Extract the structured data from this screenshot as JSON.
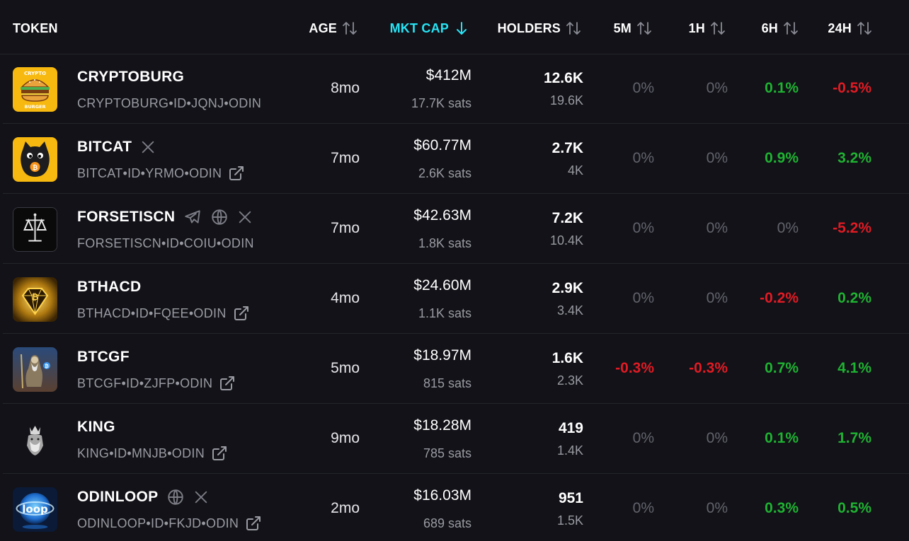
{
  "header": {
    "token": "TOKEN",
    "age": "AGE",
    "mkt_cap": "MKT CAP",
    "holders": "HOLDERS",
    "m5": "5M",
    "h1": "1H",
    "h6": "6H",
    "h24": "24H"
  },
  "colors": {
    "background": "#121218",
    "accent": "#27e4f5",
    "positive": "#1fb232",
    "negative": "#e01b24",
    "neutral": "#63636d"
  },
  "rows": [
    {
      "name": "CRYPTOBURG",
      "ident": "CRYPTOBURG•ID•JQNJ•ODIN",
      "logo_text_top": "CRYPTO",
      "logo_text_bottom": "BURGER",
      "socials": [],
      "age": "8mo",
      "mcap": "$412M",
      "sats": "17.7K sats",
      "holders": "12.6K",
      "holders_sub": "19.6K",
      "m5": "0%",
      "h1": "0%",
      "h6": "0.1%",
      "h24": "-0.5%",
      "trend": {
        "m5": "neutral",
        "h1": "neutral",
        "h6": "pos",
        "h24": "neg"
      }
    },
    {
      "name": "BITCAT",
      "ident": "BITCAT•ID•YRMO•ODIN",
      "socials": [
        "x-icon"
      ],
      "age": "7mo",
      "mcap": "$60.77M",
      "sats": "2.6K sats",
      "holders": "2.7K",
      "holders_sub": "4K",
      "m5": "0%",
      "h1": "0%",
      "h6": "0.9%",
      "h24": "3.2%",
      "trend": {
        "m5": "neutral",
        "h1": "neutral",
        "h6": "pos",
        "h24": "pos"
      }
    },
    {
      "name": "FORSETISCN",
      "ident": "FORSETISCN•ID•COIU•ODIN",
      "socials": [
        "telegram-icon",
        "globe-icon",
        "x-icon"
      ],
      "age": "7mo",
      "mcap": "$42.63M",
      "sats": "1.8K sats",
      "holders": "7.2K",
      "holders_sub": "10.4K",
      "m5": "0%",
      "h1": "0%",
      "h6": "0%",
      "h24": "-5.2%",
      "trend": {
        "m5": "neutral",
        "h1": "neutral",
        "h6": "neutral",
        "h24": "neg"
      }
    },
    {
      "name": "BTHACD",
      "ident": "BTHACD•ID•FQEE•ODIN",
      "socials": [],
      "age": "4mo",
      "mcap": "$24.60M",
      "sats": "1.1K sats",
      "holders": "2.9K",
      "holders_sub": "3.4K",
      "m5": "0%",
      "h1": "0%",
      "h6": "-0.2%",
      "h24": "0.2%",
      "trend": {
        "m5": "neutral",
        "h1": "neutral",
        "h6": "neg",
        "h24": "pos"
      }
    },
    {
      "name": "BTCGF",
      "ident": "BTCGF•ID•ZJFP•ODIN",
      "socials": [],
      "age": "5mo",
      "mcap": "$18.97M",
      "sats": "815 sats",
      "holders": "1.6K",
      "holders_sub": "2.3K",
      "m5": "-0.3%",
      "h1": "-0.3%",
      "h6": "0.7%",
      "h24": "4.1%",
      "trend": {
        "m5": "neg",
        "h1": "neg",
        "h6": "pos",
        "h24": "pos"
      }
    },
    {
      "name": "KING",
      "ident": "KING•ID•MNJB•ODIN",
      "socials": [],
      "age": "9mo",
      "mcap": "$18.28M",
      "sats": "785 sats",
      "holders": "419",
      "holders_sub": "1.4K",
      "m5": "0%",
      "h1": "0%",
      "h6": "0.1%",
      "h24": "1.7%",
      "trend": {
        "m5": "neutral",
        "h1": "neutral",
        "h6": "pos",
        "h24": "pos"
      }
    },
    {
      "name": "ODINLOOP",
      "ident": "ODINLOOP•ID•FKJD•ODIN",
      "logo_text": "loop",
      "socials": [
        "globe-icon",
        "x-icon"
      ],
      "age": "2mo",
      "mcap": "$16.03M",
      "sats": "689 sats",
      "holders": "951",
      "holders_sub": "1.5K",
      "m5": "0%",
      "h1": "0%",
      "h6": "0.3%",
      "h24": "0.5%",
      "trend": {
        "m5": "neutral",
        "h1": "neutral",
        "h6": "pos",
        "h24": "pos"
      }
    }
  ]
}
